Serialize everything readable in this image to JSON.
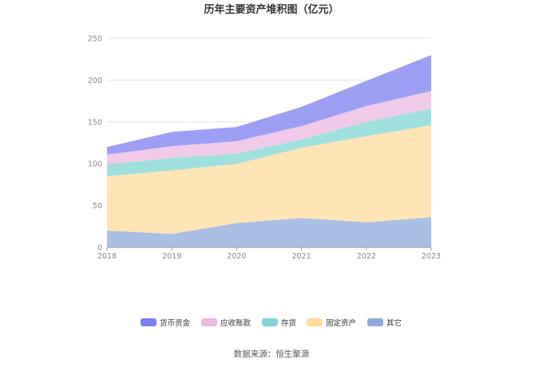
{
  "chart_data": {
    "type": "area",
    "stacked": true,
    "title": "历年主要资产堆积图（亿元）",
    "categories": [
      "2018",
      "2019",
      "2020",
      "2021",
      "2022",
      "2023"
    ],
    "ylim": [
      0,
      250
    ],
    "yticks": [
      0,
      50,
      100,
      150,
      200,
      250
    ],
    "grid": true,
    "legend_position": "bottom",
    "series": [
      {
        "name": "其它",
        "color": "#8eaadb",
        "values": [
          20,
          16,
          29,
          35,
          30,
          36
        ]
      },
      {
        "name": "固定资产",
        "color": "#ffdb9e",
        "values": [
          65,
          76,
          71,
          84,
          103,
          110
        ]
      },
      {
        "name": "存货",
        "color": "#7fd6d4",
        "values": [
          14,
          15,
          12,
          10,
          17,
          20
        ]
      },
      {
        "name": "应收账款",
        "color": "#ebb8e0",
        "values": [
          12,
          14,
          15,
          16,
          19,
          21
        ]
      },
      {
        "name": "货币资金",
        "color": "#7b7ff0",
        "values": [
          9,
          17,
          17,
          23,
          30,
          43
        ]
      }
    ],
    "legend_order": [
      "货币资金",
      "应收账款",
      "存货",
      "固定资产",
      "其它"
    ],
    "source": "数据来源：恒生聚源"
  }
}
